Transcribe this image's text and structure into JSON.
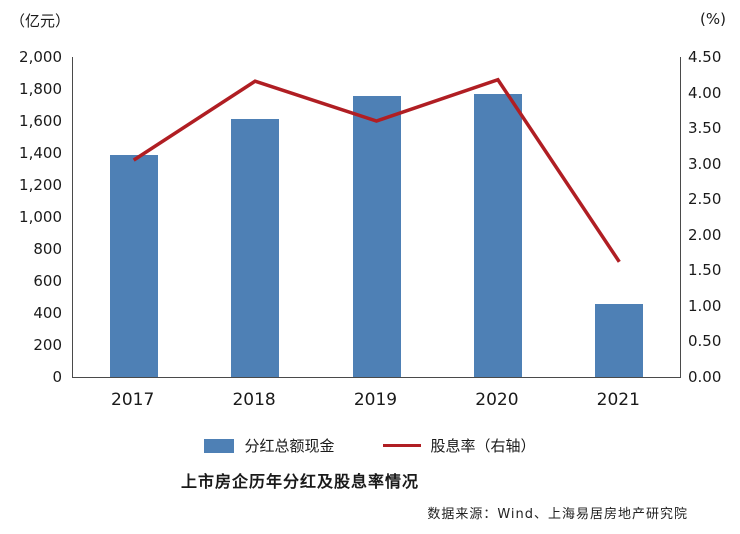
{
  "chart_data": {
    "type": "bar+line",
    "title": "上市房企历年分红及股息率情况",
    "source": "数据来源：Wind、上海易居房地产研究院",
    "categories": [
      "2017",
      "2018",
      "2019",
      "2020",
      "2021"
    ],
    "series": [
      {
        "name": "分红总额现金",
        "type": "bar",
        "axis": "left",
        "color": "#4e80b5",
        "values": [
          1390,
          1610,
          1755,
          1770,
          455
        ]
      },
      {
        "name": "股息率（右轴）",
        "type": "line",
        "axis": "right",
        "color": "#b01e23",
        "values": [
          3.05,
          4.16,
          3.6,
          4.18,
          1.62
        ]
      }
    ],
    "left_axis": {
      "unit": "（亿元）",
      "min": 0,
      "max": 2000,
      "step": 200,
      "tick_labels": [
        "2,000",
        "1,800",
        "1,600",
        "1,400",
        "1,200",
        "1,000",
        "800",
        "600",
        "400",
        "200",
        "0"
      ]
    },
    "right_axis": {
      "unit": "(%)",
      "min": 0,
      "max": 4.5,
      "step": 0.5,
      "tick_labels": [
        "4.50",
        "4.00",
        "3.50",
        "3.00",
        "2.50",
        "2.00",
        "1.50",
        "1.00",
        "0.50",
        "0.00"
      ]
    },
    "layout": {
      "grid": false,
      "legend_position": "bottom"
    }
  }
}
